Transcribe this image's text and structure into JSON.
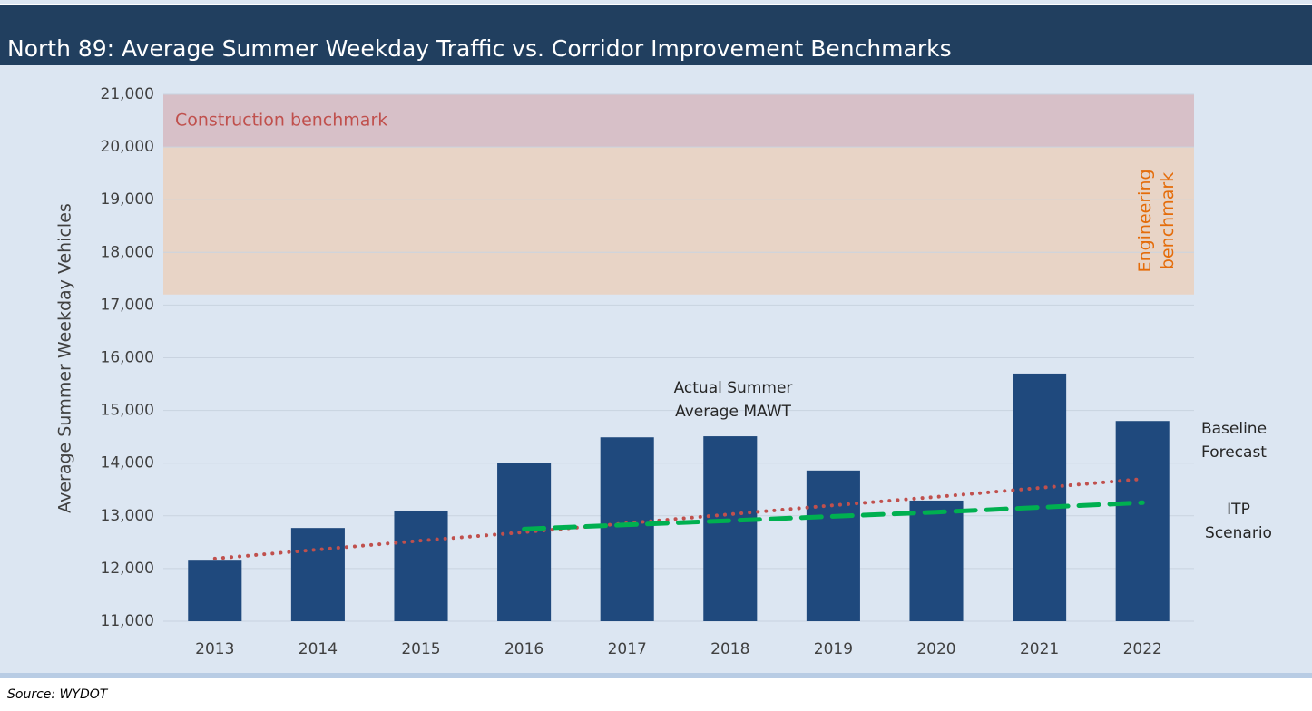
{
  "chart_data": {
    "type": "bar",
    "title": "North 89: Average Summer Weekday Traffic vs. Corridor Improvement Benchmarks",
    "y_label": "Average Summer Weekday Vehicles",
    "source": "Source: WYDOT",
    "categories": [
      "2013",
      "2014",
      "2015",
      "2016",
      "2017",
      "2018",
      "2019",
      "2020",
      "2021",
      "2022"
    ],
    "ylim": [
      11000,
      21000
    ],
    "yticks": [
      {
        "value": 11000,
        "label": "11,000"
      },
      {
        "value": 12000,
        "label": "12,000"
      },
      {
        "value": 13000,
        "label": "13,000"
      },
      {
        "value": 14000,
        "label": "14,000"
      },
      {
        "value": 15000,
        "label": "15,000"
      },
      {
        "value": 16000,
        "label": "16,000"
      },
      {
        "value": 17000,
        "label": "17,000"
      },
      {
        "value": 18000,
        "label": "18,000"
      },
      {
        "value": 19000,
        "label": "19,000"
      },
      {
        "value": 20000,
        "label": "20,000"
      },
      {
        "value": 21000,
        "label": "21,000"
      }
    ],
    "grid": true,
    "bands": [
      {
        "name": "Construction benchmark",
        "range": [
          20000,
          21000
        ],
        "color": "#d7c0c8",
        "text_color": "#c0504d"
      },
      {
        "name": "Engineering benchmark",
        "range": [
          17200,
          20000
        ],
        "color": "#e8d4c6",
        "text_color": "#e46c0a"
      }
    ],
    "series": [
      {
        "name": "Actual Summer Average MAWT",
        "type": "bar",
        "color": "#1f497d",
        "values": [
          12150,
          12770,
          13100,
          14010,
          14490,
          14510,
          13860,
          13290,
          15700,
          14800
        ]
      },
      {
        "name": "Baseline Forecast",
        "type": "dotted",
        "color": "#c0504d",
        "values": [
          12190,
          12360,
          12530,
          12690,
          12860,
          13030,
          13200,
          13360,
          13530,
          13700
        ]
      },
      {
        "name": "ITP Scenario",
        "type": "dashed",
        "color": "#00b050",
        "values": [
          null,
          null,
          null,
          12750,
          12830,
          12910,
          12990,
          13070,
          13160,
          13250
        ]
      }
    ]
  }
}
